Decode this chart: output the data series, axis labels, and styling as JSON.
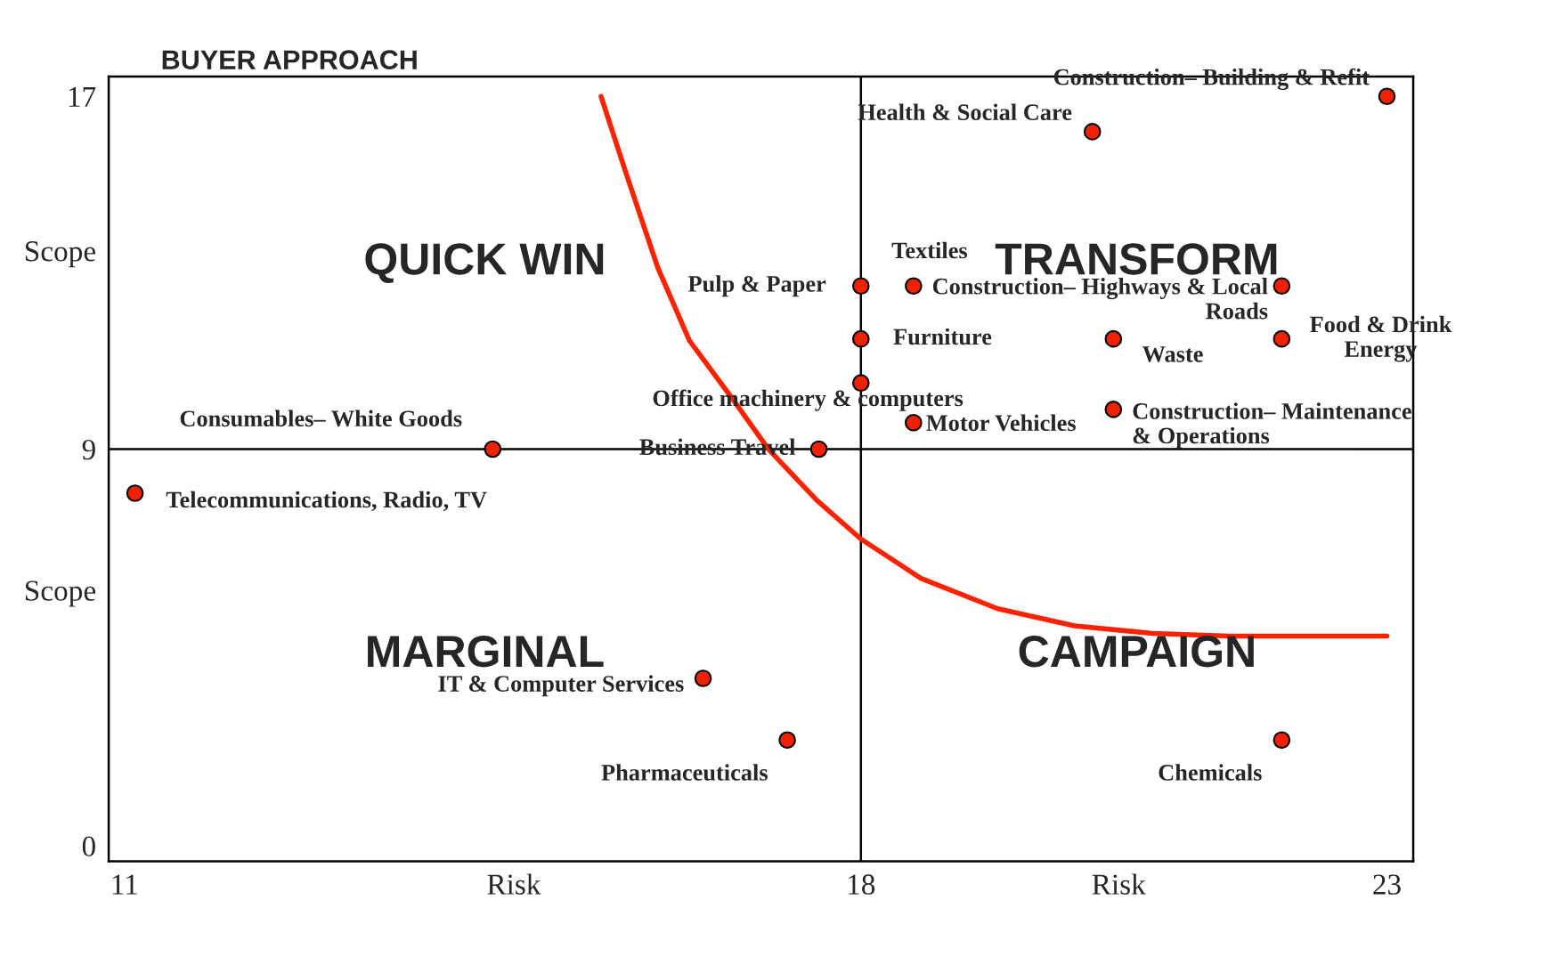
{
  "chart_data": {
    "type": "scatter",
    "title": "BUYER APPROACH",
    "xlim": [
      10.85,
      23.25
    ],
    "ylim": [
      -0.35,
      17.45
    ],
    "xticks": [
      11,
      {
        "value": 14.7,
        "label": "Risk"
      },
      18,
      {
        "value": 20.45,
        "label": "Risk"
      },
      23
    ],
    "yticks": [
      0,
      {
        "value": 5.8,
        "label": "Scope"
      },
      9,
      {
        "value": 13.5,
        "label": "Scope"
      },
      17
    ],
    "grid": false,
    "legend": false,
    "marker": "circle",
    "series": [
      {
        "color": "#ee2200",
        "x": [
          23,
          20.2,
          18,
          18.5,
          22,
          18,
          20.4,
          22,
          18,
          20.4,
          18.5,
          14.5,
          17.6,
          11.1,
          16.5,
          17.3,
          22
        ],
        "values": [
          17,
          16.2,
          12.7,
          12.7,
          12.7,
          11.5,
          11.5,
          11.5,
          10.5,
          9.9,
          9.6,
          9,
          9,
          8,
          3.8,
          2.4,
          2.4
        ]
      },
      {
        "type": "line",
        "color": "#ff2200",
        "marker": "none",
        "line_style": "solid",
        "x": [
          15.53,
          15.76,
          16.07,
          16.37,
          16.77,
          17.12,
          17.58,
          18,
          18.57,
          19.3,
          20.03,
          20.77,
          21.5,
          23
        ],
        "values": [
          17,
          15.31,
          13.11,
          11.46,
          10.17,
          9,
          7.84,
          6.96,
          6.07,
          5.38,
          4.99,
          4.82,
          4.76,
          4.76
        ]
      }
    ],
    "ref_lines": [
      {
        "axis": "x",
        "value": 18,
        "color": "#000000"
      },
      {
        "axis": "y",
        "value": 9,
        "color": "#000000"
      }
    ],
    "annotations": [
      {
        "text": "Construction– Building & Refit",
        "x": 23,
        "y": 17
      },
      {
        "text": "Health & Social Care",
        "x": 20.2,
        "y": 16.2
      },
      {
        "text": "Pulp & Paper",
        "x": 18,
        "y": 12.7
      },
      {
        "text": "Textiles",
        "x": 18.5,
        "y": 12.7
      },
      {
        "text": "Construction– Highways & Local\nRoads",
        "x": 22,
        "y": 12.7
      },
      {
        "text": "Furniture",
        "x": 18,
        "y": 11.5
      },
      {
        "text": "Waste",
        "x": 20.4,
        "y": 11.5
      },
      {
        "text": "Food & Drink\nEnergy",
        "x": 22,
        "y": 11.5
      },
      {
        "text": "Office machinery & computers",
        "x": 18,
        "y": 10.5
      },
      {
        "text": "Construction– Maintenance\n& Operations",
        "x": 20.4,
        "y": 9.9
      },
      {
        "text": "Motor Vehicles",
        "x": 18.5,
        "y": 9.6
      },
      {
        "text": "Consumables– White Goods",
        "x": 14.5,
        "y": 9
      },
      {
        "text": "Business Travel",
        "x": 17.6,
        "y": 9
      },
      {
        "text": "Telecommunications, Radio, TV",
        "x": 11.1,
        "y": 8
      },
      {
        "text": "IT & Computer Services",
        "x": 16.5,
        "y": 3.8
      },
      {
        "text": "Pharmaceuticals",
        "x": 17.3,
        "y": 2.4
      },
      {
        "text": "Chemicals",
        "x": 22,
        "y": 2.4
      },
      "QUICK WIN",
      "TRANSFORM",
      "MARGINAL",
      "CAMPAIGN"
    ]
  }
}
